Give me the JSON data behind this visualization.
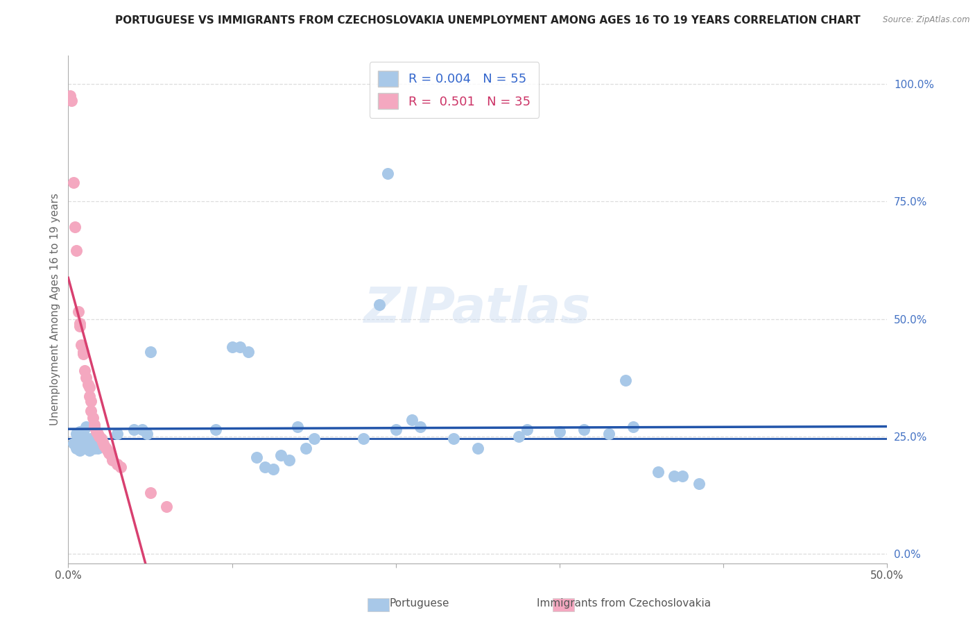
{
  "title": "PORTUGUESE VS IMMIGRANTS FROM CZECHOSLOVAKIA UNEMPLOYMENT AMONG AGES 16 TO 19 YEARS CORRELATION CHART",
  "source": "Source: ZipAtlas.com",
  "ylabel": "Unemployment Among Ages 16 to 19 years",
  "xlim": [
    0.0,
    0.5
  ],
  "ylim": [
    -0.02,
    1.06
  ],
  "xticks": [
    0.0,
    0.1,
    0.2,
    0.3,
    0.4,
    0.5
  ],
  "xticklabels_show": [
    "0.0%",
    "",
    "",
    "",
    "",
    "50.0%"
  ],
  "yticks_right": [
    0.0,
    0.25,
    0.5,
    0.75,
    1.0
  ],
  "yticklabels_right": [
    "0.0%",
    "25.0%",
    "50.0%",
    "75.0%",
    "100.0%"
  ],
  "watermark": "ZIPatlas",
  "blue_hline_y": 0.245,
  "portuguese_color": "#a8c8e8",
  "czecho_color": "#f4a8c0",
  "trendline_blue_color": "#2255aa",
  "trendline_pink_color": "#d84070",
  "background_color": "#ffffff",
  "grid_color": "#dddddd",
  "portuguese_scatter": [
    [
      0.003,
      0.235
    ],
    [
      0.005,
      0.225
    ],
    [
      0.006,
      0.24
    ],
    [
      0.007,
      0.22
    ],
    [
      0.008,
      0.235
    ],
    [
      0.009,
      0.245
    ],
    [
      0.01,
      0.225
    ],
    [
      0.011,
      0.24
    ],
    [
      0.012,
      0.23
    ],
    [
      0.013,
      0.22
    ],
    [
      0.014,
      0.245
    ],
    [
      0.015,
      0.235
    ],
    [
      0.016,
      0.225
    ],
    [
      0.017,
      0.235
    ],
    [
      0.018,
      0.225
    ],
    [
      0.019,
      0.24
    ],
    [
      0.02,
      0.235
    ],
    [
      0.005,
      0.255
    ],
    [
      0.007,
      0.26
    ],
    [
      0.009,
      0.255
    ],
    [
      0.011,
      0.27
    ],
    [
      0.03,
      0.255
    ],
    [
      0.04,
      0.265
    ],
    [
      0.045,
      0.265
    ],
    [
      0.048,
      0.255
    ],
    [
      0.05,
      0.43
    ],
    [
      0.09,
      0.265
    ],
    [
      0.1,
      0.44
    ],
    [
      0.105,
      0.44
    ],
    [
      0.11,
      0.43
    ],
    [
      0.115,
      0.205
    ],
    [
      0.12,
      0.185
    ],
    [
      0.125,
      0.18
    ],
    [
      0.13,
      0.21
    ],
    [
      0.135,
      0.2
    ],
    [
      0.14,
      0.27
    ],
    [
      0.145,
      0.225
    ],
    [
      0.15,
      0.245
    ],
    [
      0.18,
      0.245
    ],
    [
      0.19,
      0.53
    ],
    [
      0.2,
      0.265
    ],
    [
      0.21,
      0.285
    ],
    [
      0.215,
      0.27
    ],
    [
      0.235,
      0.245
    ],
    [
      0.25,
      0.225
    ],
    [
      0.275,
      0.25
    ],
    [
      0.28,
      0.265
    ],
    [
      0.3,
      0.26
    ],
    [
      0.315,
      0.265
    ],
    [
      0.33,
      0.255
    ],
    [
      0.34,
      0.37
    ],
    [
      0.345,
      0.27
    ],
    [
      0.36,
      0.175
    ],
    [
      0.37,
      0.165
    ],
    [
      0.375,
      0.165
    ],
    [
      0.385,
      0.15
    ],
    [
      0.195,
      0.81
    ]
  ],
  "czecho_scatter": [
    [
      0.001,
      0.975
    ],
    [
      0.002,
      0.965
    ],
    [
      0.003,
      0.79
    ],
    [
      0.004,
      0.695
    ],
    [
      0.005,
      0.645
    ],
    [
      0.006,
      0.515
    ],
    [
      0.007,
      0.49
    ],
    [
      0.007,
      0.485
    ],
    [
      0.008,
      0.445
    ],
    [
      0.009,
      0.43
    ],
    [
      0.009,
      0.425
    ],
    [
      0.01,
      0.39
    ],
    [
      0.011,
      0.375
    ],
    [
      0.012,
      0.36
    ],
    [
      0.013,
      0.355
    ],
    [
      0.013,
      0.335
    ],
    [
      0.014,
      0.325
    ],
    [
      0.014,
      0.305
    ],
    [
      0.015,
      0.29
    ],
    [
      0.016,
      0.275
    ],
    [
      0.016,
      0.27
    ],
    [
      0.017,
      0.26
    ],
    [
      0.018,
      0.255
    ],
    [
      0.019,
      0.25
    ],
    [
      0.02,
      0.245
    ],
    [
      0.021,
      0.238
    ],
    [
      0.022,
      0.23
    ],
    [
      0.023,
      0.225
    ],
    [
      0.024,
      0.22
    ],
    [
      0.025,
      0.215
    ],
    [
      0.026,
      0.21
    ],
    [
      0.027,
      0.2
    ],
    [
      0.03,
      0.19
    ],
    [
      0.032,
      0.185
    ],
    [
      0.05,
      0.13
    ],
    [
      0.06,
      0.1
    ]
  ]
}
